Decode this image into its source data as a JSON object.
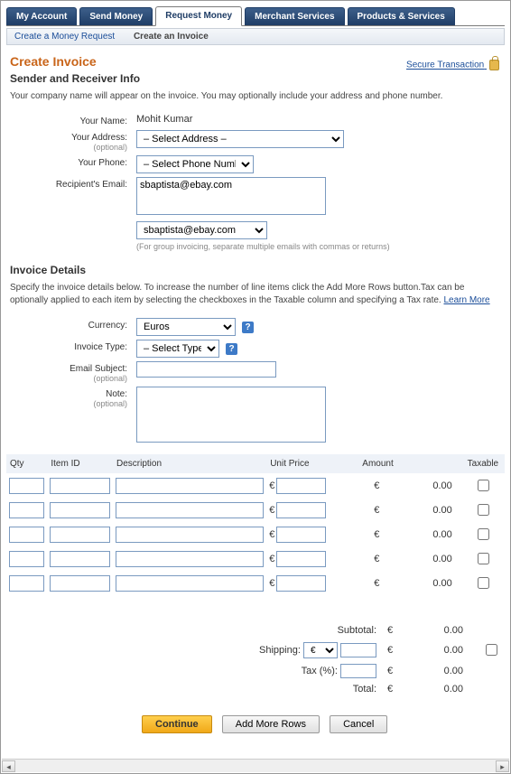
{
  "topnav": {
    "tabs": [
      "My Account",
      "Send Money",
      "Request Money",
      "Merchant Services",
      "Products & Services"
    ],
    "active_index": 2
  },
  "subnav": {
    "items": [
      "Create a Money Request",
      "Create an Invoice"
    ],
    "active_index": 1
  },
  "secure_label": "Secure Transaction",
  "page_title": "Create Invoice",
  "section1": {
    "title": "Sender and Receiver Info",
    "desc": "Your company name will appear on the invoice. You may optionally include your address and phone number.",
    "your_name_label": "Your Name:",
    "your_name_value": "Mohit Kumar",
    "your_address_label": "Your Address:",
    "address_select": "– Select Address –",
    "your_phone_label": "Your Phone:",
    "phone_select": "– Select Phone Number –",
    "recipient_email_label": "Recipient's Email:",
    "recipient_email_value": "sbaptista@ebay.com",
    "recipient_select": "sbaptista@ebay.com",
    "group_hint": "(For group invoicing, separate multiple emails with commas or returns)",
    "optional": "(optional)"
  },
  "section2": {
    "title": "Invoice Details",
    "desc_a": "Specify the invoice details below. To increase the number of line items click the Add More Rows button.Tax can be optionally applied to each item by selecting the checkboxes in the Taxable column and specifying a Tax rate. ",
    "learn_more": "Learn More",
    "currency_label": "Currency:",
    "currency_value": "Euros",
    "invoice_type_label": "Invoice Type:",
    "invoice_type_value": "– Select Type –",
    "email_subject_label": "Email Subject:",
    "note_label": "Note:",
    "optional": "(optional)"
  },
  "table": {
    "headers": [
      "Qty",
      "Item ID",
      "Description",
      "Unit Price",
      "Amount",
      "Taxable"
    ],
    "currency_symbol": "€",
    "row_count": 5,
    "amount_default": "0.00"
  },
  "totals": {
    "subtotal_label": "Subtotal:",
    "shipping_label": "Shipping:",
    "tax_label": "Tax (%):",
    "total_label": "Total:",
    "currency_symbol": "€",
    "value": "0.00",
    "shipping_currency_options": [
      "€"
    ]
  },
  "buttons": {
    "continue": "Continue",
    "add_rows": "Add More Rows",
    "cancel": "Cancel"
  },
  "colors": {
    "tab_bg": "#1f3d66",
    "accent_orange": "#c9651a",
    "link": "#1a4d99",
    "header_row": "#eef2f8",
    "btn_primary_top": "#ffcf4d",
    "btn_primary_bottom": "#f0a818"
  }
}
